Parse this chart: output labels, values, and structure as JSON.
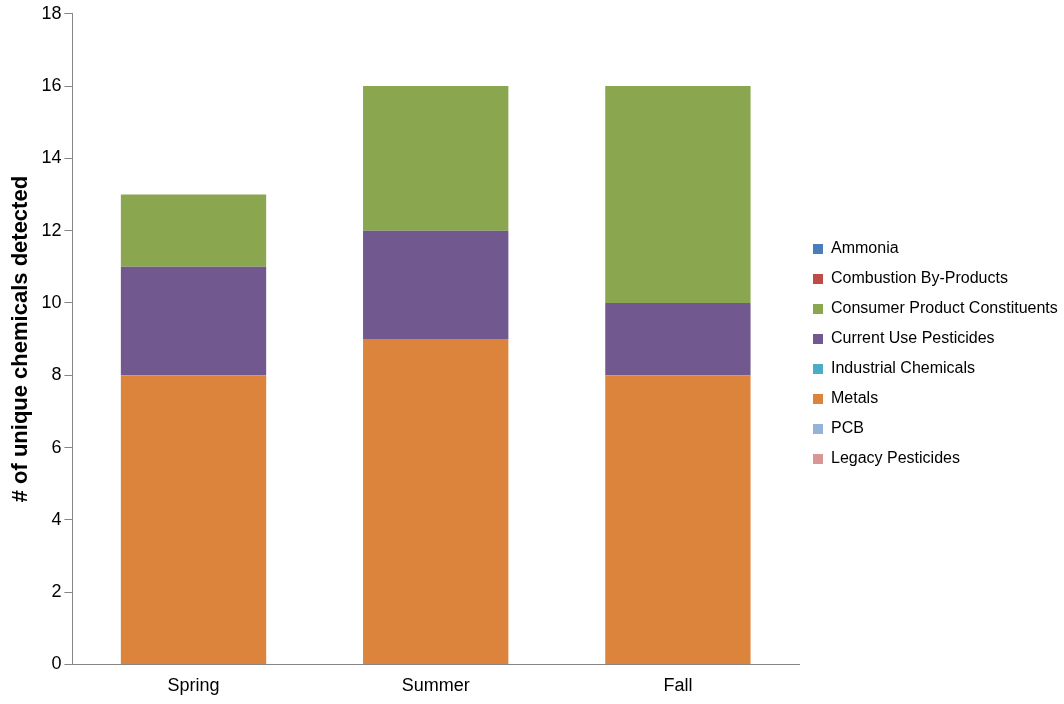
{
  "chart_data": {
    "type": "bar",
    "stacked": true,
    "ylabel": "# of unique chemicals detected",
    "categories": [
      "Spring",
      "Summer",
      "Fall"
    ],
    "series": [
      {
        "name": "Legacy Pesticides",
        "color": "#d99694",
        "values": [
          0,
          0,
          0
        ]
      },
      {
        "name": "PCB",
        "color": "#95b3d7",
        "values": [
          0,
          0,
          0
        ]
      },
      {
        "name": "Metals",
        "color": "#dd843c",
        "values": [
          8,
          9,
          8
        ]
      },
      {
        "name": "Industrial Chemicals",
        "color": "#4bacc6",
        "values": [
          0,
          0,
          0
        ]
      },
      {
        "name": "Current Use Pesticides",
        "color": "#71588f",
        "values": [
          3,
          3,
          2
        ]
      },
      {
        "name": "Consumer Product Constituents",
        "color": "#8aa64e",
        "values": [
          2,
          4,
          6
        ]
      },
      {
        "name": "Combustion By-Products",
        "color": "#be4b48",
        "values": [
          0,
          0,
          0
        ]
      },
      {
        "name": "Ammonia",
        "color": "#4a7ebb",
        "values": [
          0,
          0,
          0
        ]
      }
    ],
    "ylim": [
      0,
      18
    ],
    "yticks": [
      0,
      2,
      4,
      6,
      8,
      10,
      12,
      14,
      16,
      18
    ],
    "grid": false,
    "legend": "right"
  }
}
